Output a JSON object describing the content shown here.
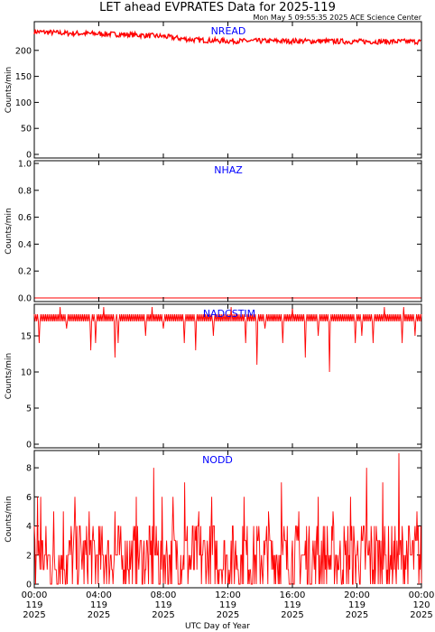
{
  "title": "LET ahead EVPRATES Data for 2025-119",
  "timestamp": "Mon May  5 09:55:35 2025 ACE Science Center",
  "xlabel": "UTC Day of Year",
  "colors": {
    "data": "#ff0000",
    "panel_label": "#0000ff",
    "axis": "#000000"
  },
  "x_ticks": [
    {
      "time": "00:00",
      "doy": "119",
      "year": "2025"
    },
    {
      "time": "04:00",
      "doy": "119",
      "year": "2025"
    },
    {
      "time": "08:00",
      "doy": "119",
      "year": "2025"
    },
    {
      "time": "12:00",
      "doy": "119",
      "year": "2025"
    },
    {
      "time": "16:00",
      "doy": "119",
      "year": "2025"
    },
    {
      "time": "20:00",
      "doy": "119",
      "year": "2025"
    },
    {
      "time": "00:00",
      "doy": "120",
      "year": "2025"
    }
  ],
  "chart_data": [
    {
      "type": "line",
      "panel": "NREAD",
      "ylabel": "Counts/min",
      "xlim_hours": [
        0,
        24
      ],
      "ylim": [
        0,
        250
      ],
      "yticks": [
        0,
        50,
        100,
        150,
        200
      ],
      "series": [
        {
          "x_hours": [
            0,
            2,
            4,
            6,
            8,
            9,
            10,
            12,
            16,
            20,
            22,
            24
          ],
          "y": [
            236,
            233,
            232,
            230,
            227,
            223,
            220,
            218,
            218,
            217,
            217,
            217
          ]
        }
      ]
    },
    {
      "type": "line",
      "panel": "NHAZ",
      "ylabel": "Counts/min",
      "xlim_hours": [
        0,
        24
      ],
      "ylim": [
        0,
        1
      ],
      "yticks": [
        "0.0",
        "0.2",
        "0.4",
        "0.6",
        "0.8",
        "1.0"
      ],
      "series": [
        {
          "x_hours": [
            0,
            24
          ],
          "y": [
            0,
            0
          ]
        }
      ]
    },
    {
      "type": "line",
      "panel": "NADCSTIM",
      "ylabel": "Counts/min",
      "xlim_hours": [
        0,
        24
      ],
      "ylim": [
        0,
        19
      ],
      "yticks": [
        0,
        5,
        10,
        15
      ],
      "baseline": {
        "low": 17,
        "high": 18
      },
      "series": [
        {
          "dips_hours": [
            0.3,
            2.0,
            3.5,
            3.8,
            5.0,
            5.2,
            6.9,
            8.0,
            9.3,
            10.0,
            11.1,
            13.1,
            13.8,
            14.3,
            15.4,
            16.8,
            17.6,
            18.3,
            19.9,
            20.3,
            21.0,
            22.8,
            23.6
          ],
          "dip_values": [
            14,
            16,
            13,
            14,
            12,
            14,
            15,
            16,
            14,
            13,
            15,
            14,
            11,
            16,
            14,
            12,
            15,
            10,
            14,
            15,
            14,
            14,
            15
          ],
          "spikes_hours": [
            1.6,
            4.3,
            7.3,
            12.2,
            16.0,
            21.7,
            22.9
          ],
          "spike_values": [
            19,
            19,
            19,
            19,
            19,
            19,
            19
          ]
        }
      ]
    },
    {
      "type": "line",
      "panel": "NODD",
      "ylabel": "Counts/min",
      "xlim_hours": [
        0,
        24
      ],
      "ylim": [
        0,
        9
      ],
      "yticks": [
        0,
        2,
        4,
        6,
        8
      ],
      "series": [
        {
          "peaks_hours": [
            0.2,
            0.4,
            1.2,
            1.8,
            2.5,
            3.4,
            5.0,
            6.3,
            7.4,
            7.9,
            8.6,
            9.3,
            10.2,
            11.0,
            13.0,
            14.5,
            15.3,
            16.4,
            17.6,
            18.5,
            19.6,
            20.6,
            21.6,
            22.6,
            23.7
          ],
          "peak_values": [
            6,
            6,
            5,
            5,
            6,
            5,
            5,
            6,
            8,
            6,
            6,
            7,
            5,
            6,
            6,
            5,
            7,
            5,
            6,
            5,
            6,
            8,
            7,
            9,
            5
          ]
        }
      ]
    }
  ]
}
